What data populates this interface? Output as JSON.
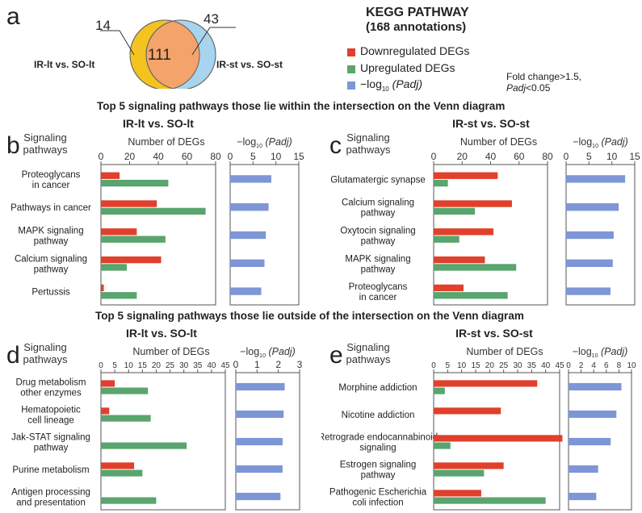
{
  "colors": {
    "down": "#e0402c",
    "up": "#5aa46e",
    "padj": "#7e96d6",
    "venn_left": "#f3c320",
    "venn_right": "#a8d4f0",
    "venn_mid": "#f4a46a"
  },
  "panel_a": {
    "letter": "a",
    "venn": {
      "left_only": "14",
      "intersection": "111",
      "right_only": "43",
      "left_label": "IR-lt vs. SO-lt",
      "right_label": "IR-st vs. SO-st"
    },
    "header_title": "KEGG  PATHWAY",
    "header_sub": "(168 annotations)",
    "legend_down": "Downregulated DEGs",
    "legend_up": "Upregulated DEGs",
    "legend_padj_prefix": "−log",
    "legend_padj_sub": "10",
    "legend_padj_suffix": " (Padj)",
    "note_line1": "Fold change>1.5,",
    "note_line2_italic": "Padj",
    "note_line2_rest": "<0.05"
  },
  "section_top_title": "Top 5 signaling pathways those lie within the intersection on the Venn diagram",
  "section_bottom_title": "Top 5 signaling pathways those lie outside of the intersection on the Venn diagram",
  "common": {
    "row_header_line1": "Signaling",
    "row_header_line2": "pathways",
    "deg_axis_label": "Number of DEGs",
    "padj_axis_prefix": "−log",
    "padj_axis_sub": "10",
    "padj_axis_suffix": " (Padj)"
  },
  "chart_data": [
    {
      "panel": "b",
      "type": "bar",
      "title": "IR-lt vs. SO-lt",
      "categories": [
        [
          "Proteoglycans",
          "in cancer"
        ],
        [
          "Pathways in cancer"
        ],
        [
          "MAPK signaling",
          "pathway"
        ],
        [
          "Calcium signaling",
          "pathway"
        ],
        [
          "Pertussis"
        ]
      ],
      "series": [
        {
          "name": "Downregulated DEGs",
          "values": [
            13,
            39,
            25,
            42,
            2
          ]
        },
        {
          "name": "Upregulated DEGs",
          "values": [
            47,
            73,
            45,
            18,
            25
          ]
        }
      ],
      "deg_xlim": [
        0,
        80
      ],
      "deg_ticks": [
        0,
        20,
        40,
        60,
        80
      ],
      "padj": [
        9.0,
        8.4,
        7.8,
        7.5,
        6.8
      ],
      "padj_xlim": [
        0,
        15
      ],
      "padj_ticks": [
        0,
        5,
        10,
        15
      ]
    },
    {
      "panel": "c",
      "type": "bar",
      "title": "IR-st vs. SO-st",
      "categories": [
        [
          "Glutamatergic synapse"
        ],
        [
          "Calcium signaling",
          "pathway"
        ],
        [
          "Oxytocin signaling",
          "pathway"
        ],
        [
          "MAPK signaling",
          "pathway"
        ],
        [
          "Proteoglycans",
          "in cancer"
        ]
      ],
      "series": [
        {
          "name": "Downregulated DEGs",
          "values": [
            45,
            55,
            42,
            36,
            21
          ]
        },
        {
          "name": "Upregulated DEGs",
          "values": [
            10,
            29,
            18,
            58,
            52
          ]
        }
      ],
      "deg_xlim": [
        0,
        80
      ],
      "deg_ticks": [
        0,
        20,
        40,
        60,
        80
      ],
      "padj": [
        12.9,
        11.5,
        10.4,
        10.2,
        9.7
      ],
      "padj_xlim": [
        0,
        15
      ],
      "padj_ticks": [
        0,
        5,
        10,
        15
      ]
    },
    {
      "panel": "d",
      "type": "bar",
      "title": "IR-lt vs. SO-lt",
      "categories": [
        [
          "Drug metabolism",
          "other enzymes"
        ],
        [
          "Hematopoietic",
          "cell lineage"
        ],
        [
          "Jak-STAT signaling",
          "pathway"
        ],
        [
          "Purine metabolism"
        ],
        [
          "Antigen processing",
          "and presentation"
        ]
      ],
      "series": [
        {
          "name": "Downregulated DEGs",
          "values": [
            5,
            3,
            0,
            12,
            0
          ]
        },
        {
          "name": "Upregulated DEGs",
          "values": [
            17,
            18,
            31,
            15,
            20
          ]
        }
      ],
      "deg_xlim": [
        0,
        45
      ],
      "deg_ticks": [
        0,
        5,
        10,
        15,
        20,
        25,
        30,
        35,
        40,
        45
      ],
      "padj": [
        2.3,
        2.25,
        2.2,
        2.2,
        2.1
      ],
      "padj_xlim": [
        0,
        3
      ],
      "padj_ticks": [
        0,
        1,
        2,
        3
      ]
    },
    {
      "panel": "e",
      "type": "bar",
      "title": "IR-st vs. SO-st",
      "categories": [
        [
          "Morphine addiction"
        ],
        [
          "Nicotine addiction"
        ],
        [
          "Retrograde endocannabinoid",
          "signaling"
        ],
        [
          "Estrogen signaling",
          "pathway"
        ],
        [
          "Pathogenic Escherichia",
          "coli infection"
        ]
      ],
      "series": [
        {
          "name": "Downregulated DEGs",
          "values": [
            37,
            24,
            46,
            25,
            17
          ]
        },
        {
          "name": "Upregulated DEGs",
          "values": [
            4,
            0,
            6,
            18,
            40
          ]
        }
      ],
      "deg_xlim": [
        0,
        45
      ],
      "deg_ticks": [
        0,
        5,
        10,
        15,
        20,
        25,
        30,
        35,
        40,
        45
      ],
      "padj": [
        8.4,
        7.6,
        6.7,
        4.7,
        4.4
      ],
      "padj_xlim": [
        0,
        10
      ],
      "padj_ticks": [
        0,
        2,
        4,
        6,
        8,
        10
      ]
    }
  ]
}
